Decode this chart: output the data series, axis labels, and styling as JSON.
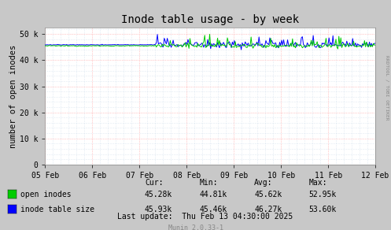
{
  "title": "Inode table usage - by week",
  "ylabel": "number of open inodes",
  "background_color": "#c8c8c8",
  "plot_bg_color": "#ffffff",
  "grid_major_color": "#ff9999",
  "grid_minor_color": "#c8d8e8",
  "ylim": [
    0,
    52500
  ],
  "yticks": [
    0,
    10000,
    20000,
    30000,
    40000,
    50000
  ],
  "ytick_labels": [
    "0",
    "10 k",
    "20 k",
    "30 k",
    "40 k",
    "50 k"
  ],
  "x_dates": [
    "05 Feb",
    "06 Feb",
    "07 Feb",
    "08 Feb",
    "09 Feb",
    "10 Feb",
    "11 Feb",
    "12 Feb"
  ],
  "open_inodes_color": "#00cc00",
  "inode_table_color": "#0000ff",
  "legend_labels": [
    "open inodes",
    "inode table size"
  ],
  "legend_colors": [
    "#00cc00",
    "#0000ff"
  ],
  "stats_header": [
    "Cur:",
    "Min:",
    "Avg:",
    "Max:"
  ],
  "stats_open": [
    "45.28k",
    "44.81k",
    "45.62k",
    "52.95k"
  ],
  "stats_table": [
    "45.93k",
    "45.46k",
    "46.27k",
    "53.60k"
  ],
  "last_update": "Last update:  Thu Feb 13 04:30:00 2025",
  "munin_version": "Munin 2.0.33-1",
  "rrdtool_label": "RRDTOOL / TOBI OETIKER"
}
